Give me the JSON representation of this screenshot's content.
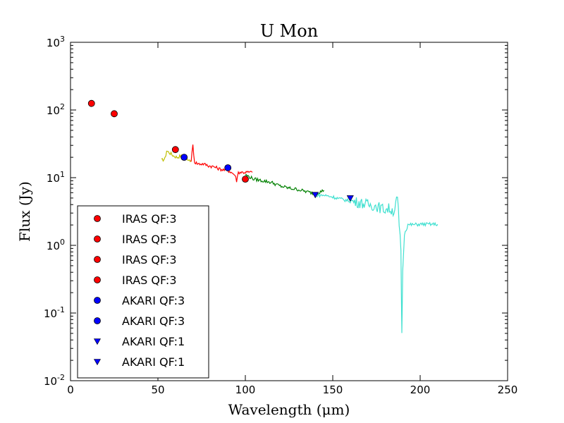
{
  "chart_data": {
    "type": "scatter",
    "title": "U Mon",
    "xlabel": "Wavelength (μm)",
    "ylabel": "Flux (Jy)",
    "xscale": "linear",
    "yscale": "log",
    "xlim": [
      0,
      250
    ],
    "ylim": [
      0.01,
      1000
    ],
    "x_ticks": [
      0,
      50,
      100,
      150,
      200,
      250
    ],
    "x_tick_labels": [
      "0",
      "50",
      "100",
      "150",
      "200",
      "250"
    ],
    "y_ticks": [
      0.01,
      0.1,
      1,
      10,
      100,
      1000
    ],
    "y_tick_labels": [
      {
        "base": "10",
        "exp": "-2"
      },
      {
        "base": "10",
        "exp": "-1"
      },
      {
        "base": "10",
        "exp": "0"
      },
      {
        "base": "10",
        "exp": "1"
      },
      {
        "base": "10",
        "exp": "2"
      },
      {
        "base": "10",
        "exp": "3"
      }
    ],
    "legend_position": "lower-left",
    "point_series": [
      {
        "name": "IRAS QF:3",
        "marker": "circle",
        "color": "#ff0000",
        "points": [
          [
            12,
            125
          ]
        ]
      },
      {
        "name": "IRAS QF:3",
        "marker": "circle",
        "color": "#ff0000",
        "points": [
          [
            25,
            88
          ]
        ]
      },
      {
        "name": "IRAS QF:3",
        "marker": "circle",
        "color": "#ff0000",
        "points": [
          [
            60,
            26
          ]
        ]
      },
      {
        "name": "IRAS QF:3",
        "marker": "circle",
        "color": "#ff0000",
        "points": [
          [
            100,
            9.5
          ]
        ]
      },
      {
        "name": "AKARI QF:3",
        "marker": "circle",
        "color": "#0000ff",
        "points": [
          [
            65,
            20
          ]
        ]
      },
      {
        "name": "AKARI QF:3",
        "marker": "circle",
        "color": "#0000ff",
        "points": [
          [
            90,
            14
          ]
        ]
      },
      {
        "name": "AKARI QF:1",
        "marker": "triangle-down",
        "color": "#0000ff",
        "points": [
          [
            140,
            5.6
          ]
        ]
      },
      {
        "name": "AKARI QF:1",
        "marker": "triangle-down",
        "color": "#0000ff",
        "points": [
          [
            160,
            5.0
          ]
        ]
      }
    ],
    "spectra": [
      {
        "name": "yellow segment",
        "color": "#bfbf00",
        "points": [
          [
            52,
            18
          ],
          [
            54,
            19
          ],
          [
            55,
            25
          ],
          [
            57,
            23
          ],
          [
            59,
            21
          ],
          [
            61,
            20
          ],
          [
            63,
            21
          ],
          [
            65,
            20
          ],
          [
            67,
            19
          ],
          [
            69,
            18
          ]
        ]
      },
      {
        "name": "red segment",
        "color": "#ff0000",
        "points": [
          [
            69,
            18
          ],
          [
            70,
            30
          ],
          [
            71,
            17
          ],
          [
            73,
            16
          ],
          [
            76,
            16
          ],
          [
            79,
            15
          ],
          [
            82,
            14.5
          ],
          [
            85,
            13.5
          ],
          [
            88,
            13
          ],
          [
            91,
            12.5
          ],
          [
            94,
            11
          ],
          [
            95,
            9
          ],
          [
            96,
            12
          ],
          [
            100,
            12
          ],
          [
            104,
            12
          ]
        ]
      },
      {
        "name": "green segment",
        "color": "#008000",
        "points": [
          [
            100,
            11
          ],
          [
            105,
            9.5
          ],
          [
            110,
            9
          ],
          [
            115,
            8.5
          ],
          [
            120,
            7.5
          ],
          [
            125,
            7
          ],
          [
            130,
            6.7
          ],
          [
            135,
            6.2
          ],
          [
            140,
            5.8
          ],
          [
            143,
            6.2
          ],
          [
            145,
            6.5
          ]
        ]
      },
      {
        "name": "turquoise segment",
        "color": "#40e0d0",
        "points": [
          [
            140,
            5.5
          ],
          [
            145,
            5.5
          ],
          [
            150,
            5.2
          ],
          [
            155,
            4.8
          ],
          [
            160,
            4.5
          ],
          [
            165,
            4.3
          ],
          [
            170,
            4
          ],
          [
            175,
            3.8
          ],
          [
            178,
            3.5
          ],
          [
            180,
            3.4
          ],
          [
            182,
            3.5
          ],
          [
            185,
            3.2
          ],
          [
            187,
            5
          ],
          [
            188,
            2
          ],
          [
            189,
            0.8
          ],
          [
            189.5,
            0.05
          ],
          [
            190,
            0.4
          ],
          [
            191,
            1.5
          ],
          [
            193,
            2.0
          ],
          [
            200,
            2.05
          ],
          [
            210,
            2.05
          ]
        ]
      }
    ]
  }
}
